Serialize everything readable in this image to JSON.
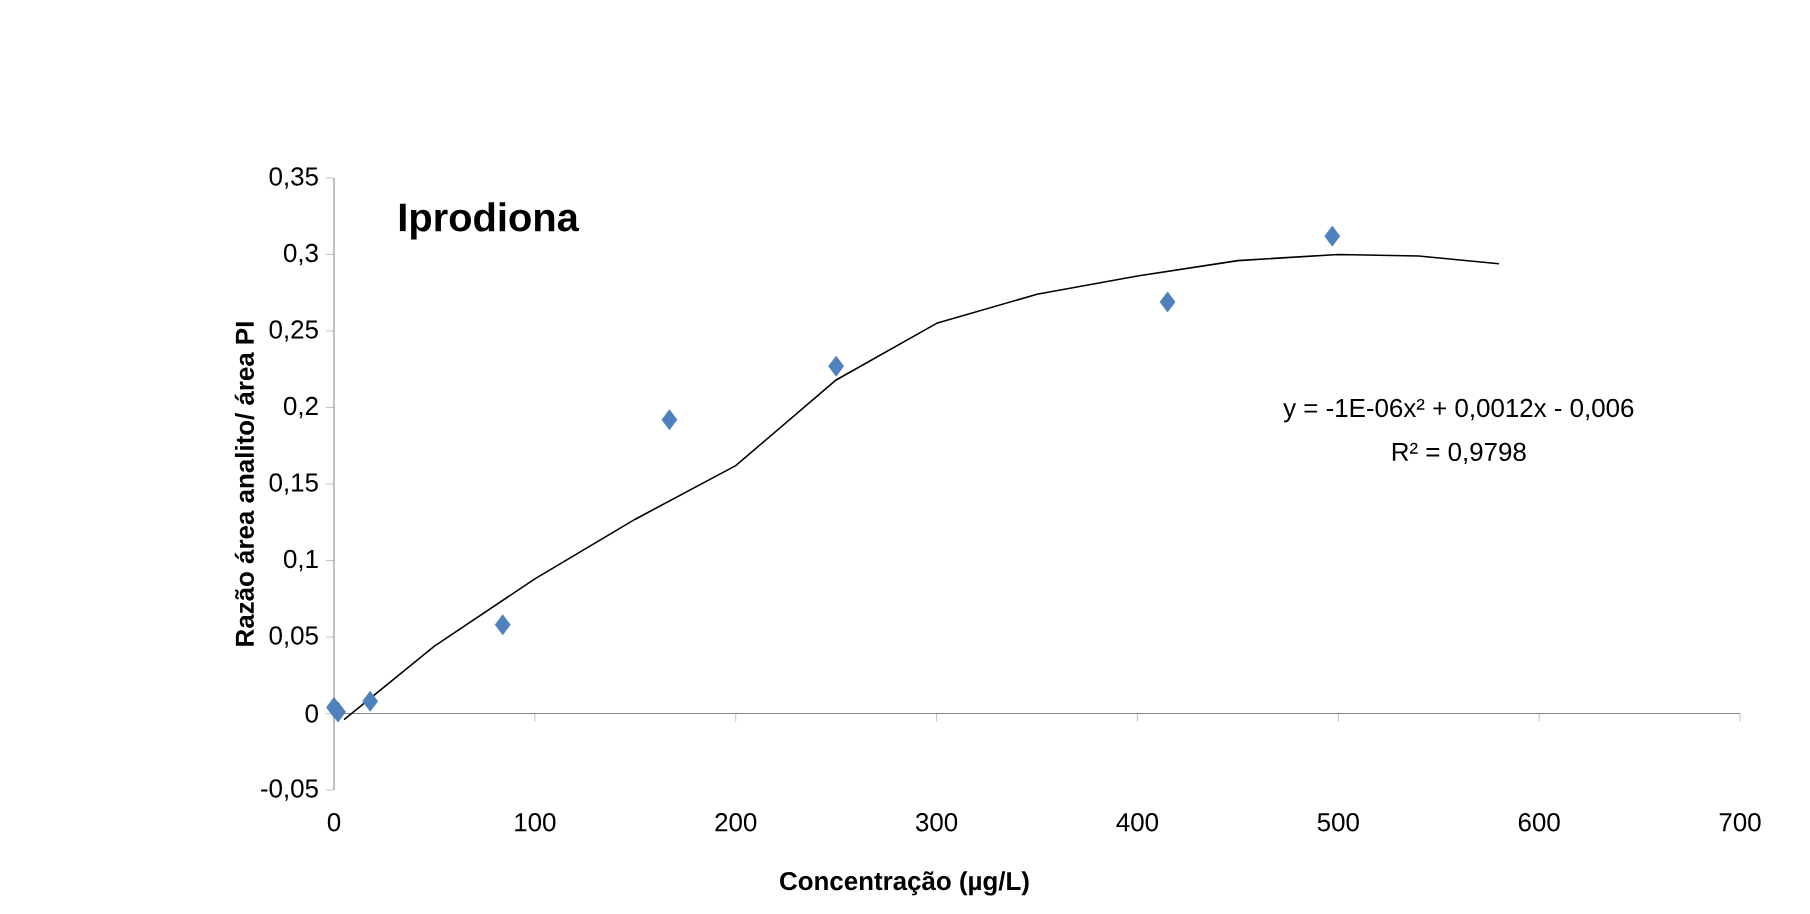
{
  "chart_data": {
    "type": "scatter",
    "title": "Iprodiona",
    "xlabel": "Concentração (µg/L)",
    "ylabel": "Razão área analito/ área PI",
    "xlim": [
      0,
      700
    ],
    "xticks": [
      0,
      100,
      200,
      300,
      400,
      500,
      600,
      700
    ],
    "ylim": [
      -0.05,
      0.35
    ],
    "yticks": [
      {
        "value": -0.05,
        "label": "-0,05"
      },
      {
        "value": 0,
        "label": "0"
      },
      {
        "value": 0.05,
        "label": "0,05"
      },
      {
        "value": 0.1,
        "label": "0,1"
      },
      {
        "value": 0.15,
        "label": "0,15"
      },
      {
        "value": 0.2,
        "label": "0,2"
      },
      {
        "value": 0.25,
        "label": "0,25"
      },
      {
        "value": 0.3,
        "label": "0,3"
      },
      {
        "value": 0.35,
        "label": "0,35"
      }
    ],
    "marker": "diamond",
    "series": [
      {
        "color": "#4f81bd",
        "x": [
          0,
          2,
          18,
          84,
          167,
          250,
          415,
          497
        ],
        "values": [
          0.004,
          0.001,
          0.008,
          0.058,
          0.192,
          0.227,
          0.269,
          0.312
        ]
      },
      {
        "type": "line",
        "color": "#000000",
        "marker": "none",
        "x": [
          5,
          50,
          100,
          150,
          200,
          250,
          300,
          350,
          400,
          450,
          500,
          540,
          580
        ],
        "values": [
          -0.004,
          0.044,
          0.088,
          0.127,
          0.162,
          0.218,
          0.255,
          0.274,
          0.286,
          0.296,
          0.3,
          0.299,
          0.294
        ]
      }
    ],
    "annotations": [
      "y = -1E-06x² + 0,0012x - 0,006",
      "R² = 0,9798"
    ]
  }
}
